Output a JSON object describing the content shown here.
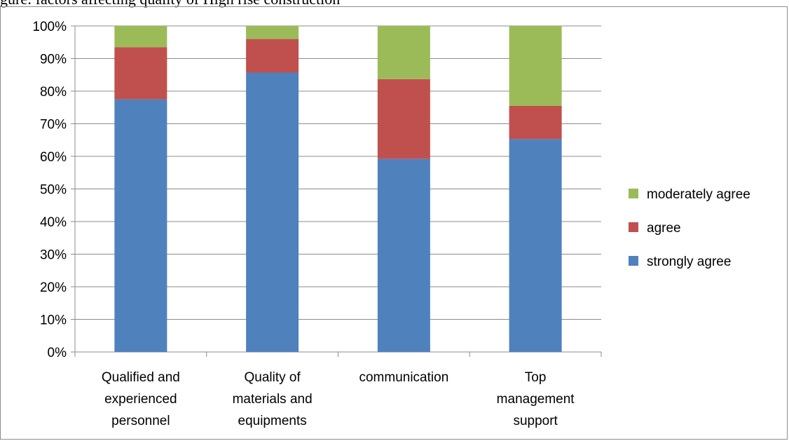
{
  "caption": "gure: factors affecting quality of High rise construction",
  "chart_data": {
    "type": "bar",
    "stacked": true,
    "categories": [
      [
        "Qualified and",
        "experienced",
        "personnel"
      ],
      [
        "Quality of",
        "materials and",
        "equipments"
      ],
      [
        "communication"
      ],
      [
        "Top",
        "management",
        "support"
      ]
    ],
    "series": [
      {
        "name": "strongly agree",
        "color": "#4f81bd",
        "values": [
          77.5,
          85.7,
          59.2,
          65.3
        ]
      },
      {
        "name": "agree",
        "color": "#c0504d",
        "values": [
          16,
          10.3,
          24.5,
          10.2
        ]
      },
      {
        "name": "moderately agree",
        "color": "#9bbb59",
        "values": [
          6.5,
          4,
          16.3,
          24.5
        ]
      }
    ],
    "ylim": [
      0,
      100
    ],
    "yticks": [
      "0%",
      "10%",
      "20%",
      "30%",
      "40%",
      "50%",
      "60%",
      "70%",
      "80%",
      "90%",
      "100%"
    ],
    "grid": true,
    "legend": "right"
  }
}
